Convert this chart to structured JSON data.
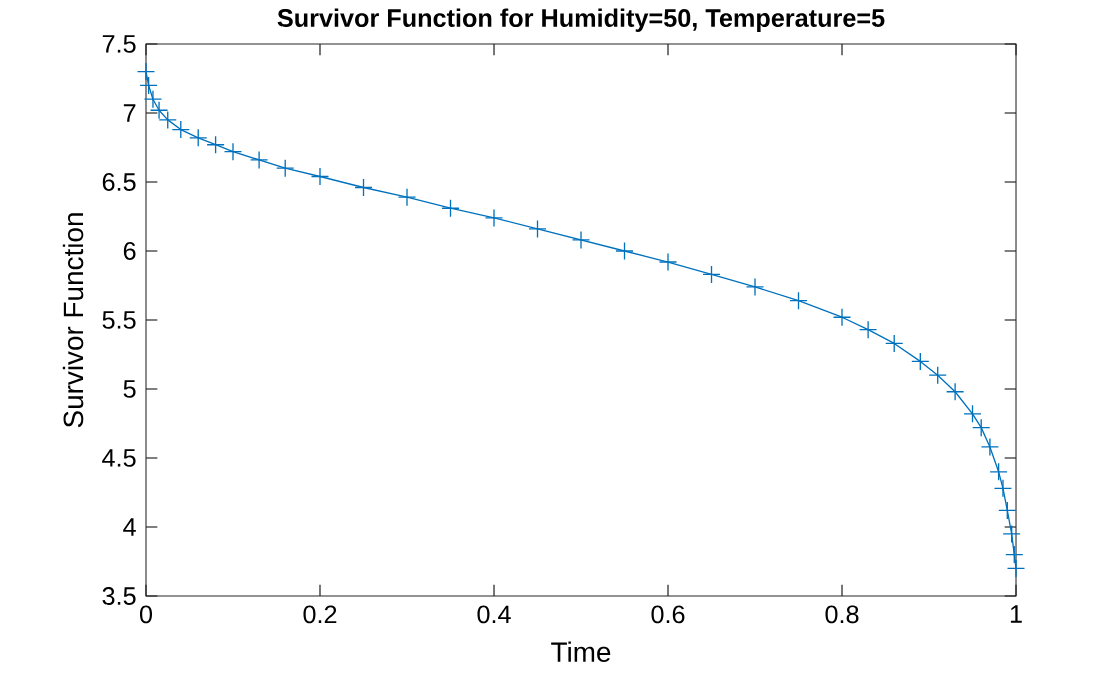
{
  "chart_data": {
    "type": "line",
    "title": "Survivor Function for Humidity=50, Temperature=5",
    "xlabel": "Time",
    "ylabel": "Survivor Function",
    "xlim": [
      0,
      1
    ],
    "ylim": [
      3.5,
      7.5
    ],
    "xticks": [
      0,
      0.2,
      0.4,
      0.6,
      0.8,
      1
    ],
    "yticks": [
      3.5,
      4,
      4.5,
      5,
      5.5,
      6,
      6.5,
      7,
      7.5
    ],
    "marker": "cross",
    "line_style": "solid",
    "series": [
      {
        "color": "#0072bd",
        "x": [
          0,
          0.003,
          0.008,
          0.015,
          0.025,
          0.04,
          0.06,
          0.08,
          0.1,
          0.13,
          0.16,
          0.2,
          0.25,
          0.3,
          0.35,
          0.4,
          0.45,
          0.5,
          0.55,
          0.6,
          0.65,
          0.7,
          0.75,
          0.8,
          0.83,
          0.86,
          0.89,
          0.91,
          0.93,
          0.95,
          0.96,
          0.97,
          0.98,
          0.985,
          0.99,
          0.995,
          0.998,
          1.0
        ],
        "values": [
          7.3,
          7.2,
          7.1,
          7.02,
          6.95,
          6.88,
          6.82,
          6.77,
          6.72,
          6.66,
          6.6,
          6.54,
          6.46,
          6.39,
          6.31,
          6.24,
          6.16,
          6.08,
          6.0,
          5.92,
          5.83,
          5.74,
          5.64,
          5.52,
          5.43,
          5.33,
          5.2,
          5.1,
          4.98,
          4.82,
          4.72,
          4.58,
          4.4,
          4.28,
          4.12,
          3.95,
          3.8,
          3.7
        ]
      }
    ]
  }
}
